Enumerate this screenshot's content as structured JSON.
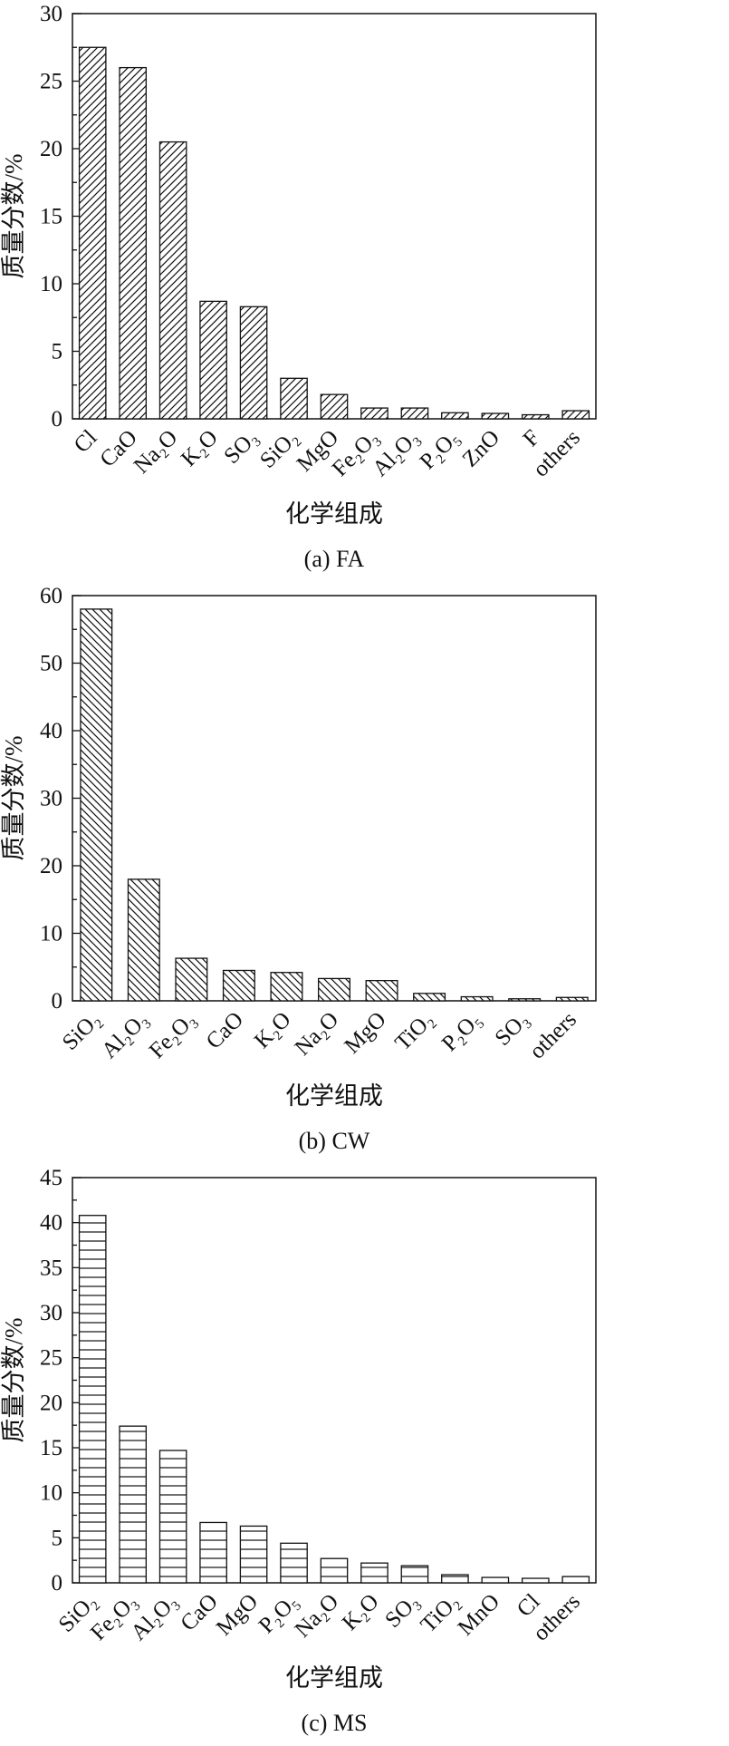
{
  "page": {
    "background": "#ffffff",
    "text_color": "#111111"
  },
  "chart_data": [
    {
      "type": "bar",
      "title": "",
      "caption": "(a) FA",
      "xlabel": "化学组成",
      "ylabel": "质量分数/%",
      "ylim": [
        0,
        30
      ],
      "ytick_major": 5,
      "ytick_minor": 2.5,
      "grid": false,
      "legend": "none",
      "hatch": "diagonal-forward",
      "bar_fill": "#ffffff",
      "line_color": "#111111",
      "categories": [
        "Cl",
        "CaO",
        "Na₂O",
        "K₂O",
        "SO₃",
        "SiO₂",
        "MgO",
        "Fe₂O₃",
        "Al₂O₃",
        "P₂O₅",
        "ZnO",
        "F",
        "others"
      ],
      "values": [
        27.5,
        26.0,
        20.5,
        8.7,
        8.3,
        3.0,
        1.8,
        0.8,
        0.8,
        0.45,
        0.4,
        0.3,
        0.6
      ]
    },
    {
      "type": "bar",
      "title": "",
      "caption": "(b) CW",
      "xlabel": "化学组成",
      "ylabel": "质量分数/%",
      "ylim": [
        0,
        60
      ],
      "ytick_major": 10,
      "ytick_minor": 5,
      "grid": false,
      "legend": "none",
      "hatch": "diagonal-backward",
      "bar_fill": "#ffffff",
      "line_color": "#111111",
      "categories": [
        "SiO₂",
        "Al₂O₃",
        "Fe₂O₃",
        "CaO",
        "K₂O",
        "Na₂O",
        "MgO",
        "TiO₂",
        "P₂O₅",
        "SO₃",
        "others"
      ],
      "values": [
        58.0,
        18.0,
        6.3,
        4.5,
        4.2,
        3.3,
        3.0,
        1.1,
        0.6,
        0.3,
        0.5
      ]
    },
    {
      "type": "bar",
      "title": "",
      "caption": "(c) MS",
      "xlabel": "化学组成",
      "ylabel": "质量分数/%",
      "ylim": [
        0,
        45
      ],
      "ytick_major": 5,
      "ytick_minor": 2.5,
      "grid": false,
      "legend": "none",
      "hatch": "horizontal",
      "bar_fill": "#ffffff",
      "line_color": "#111111",
      "categories": [
        "SiO₂",
        "Fe₂O₃",
        "Al₂O₃",
        "CaO",
        "MgO",
        "P₂O₅",
        "Na₂O",
        "K₂O",
        "SO₃",
        "TiO₂",
        "MnO",
        "Cl",
        "others"
      ],
      "values": [
        40.8,
        17.4,
        14.7,
        6.7,
        6.3,
        4.4,
        2.7,
        2.2,
        1.9,
        0.9,
        0.6,
        0.5,
        0.7
      ]
    }
  ]
}
